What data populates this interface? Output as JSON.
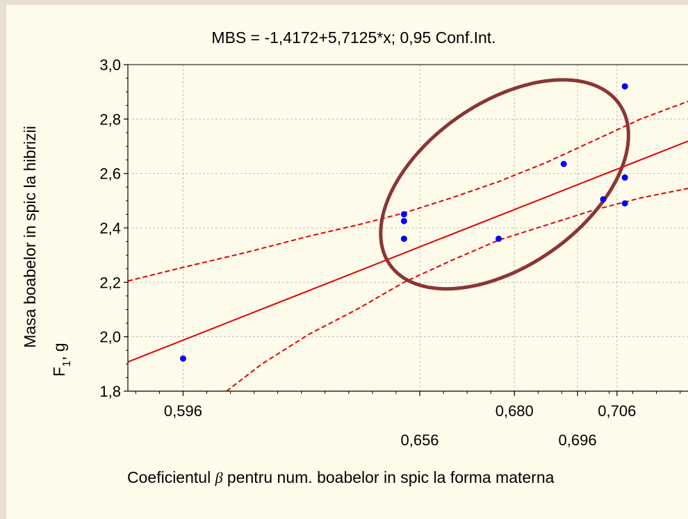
{
  "chart_data": {
    "type": "scatter",
    "title": "MBS = -1,4172+5,7125*x; 0,95 Conf.Int.",
    "ylabel_line1": "Masa boabelor in spic la hibrizii",
    "ylabel_line2_main": "F",
    "ylabel_line2_sub": "1",
    "ylabel_line2_rest": ", g",
    "xlabel_before": "Coeficientul ",
    "xlabel_symbol": "β",
    "xlabel_after": " pentru num. boabelor in spic la forma materna",
    "xlim": [
      0.582,
      0.724
    ],
    "ylim": [
      1.8,
      3.0
    ],
    "grid": true,
    "x_ticks": [
      {
        "value": 0.596,
        "label": "0,596",
        "row": 1
      },
      {
        "value": 0.656,
        "label": "0,656",
        "row": 2
      },
      {
        "value": 0.68,
        "label": "0,680",
        "row": 1
      },
      {
        "value": 0.696,
        "label": "0,696",
        "row": 2
      },
      {
        "value": 0.706,
        "label": "0,706",
        "row": 1
      }
    ],
    "y_ticks": [
      {
        "value": 1.8,
        "label": "1,8"
      },
      {
        "value": 2.0,
        "label": "2,0"
      },
      {
        "value": 2.2,
        "label": "2,2"
      },
      {
        "value": 2.4,
        "label": "2,4"
      },
      {
        "value": 2.6,
        "label": "2,6"
      },
      {
        "value": 2.8,
        "label": "2,8"
      },
      {
        "value": 3.0,
        "label": "3,0"
      }
    ],
    "points": [
      {
        "x": 0.596,
        "y": 1.92
      },
      {
        "x": 0.652,
        "y": 2.45
      },
      {
        "x": 0.652,
        "y": 2.425
      },
      {
        "x": 0.652,
        "y": 2.36
      },
      {
        "x": 0.676,
        "y": 2.36
      },
      {
        "x": 0.6925,
        "y": 2.635
      },
      {
        "x": 0.7025,
        "y": 2.505
      },
      {
        "x": 0.708,
        "y": 2.92
      },
      {
        "x": 0.708,
        "y": 2.585
      },
      {
        "x": 0.708,
        "y": 2.49
      }
    ],
    "regression": {
      "intercept": -1.4172,
      "slope": 5.7125
    },
    "conf_upper": [
      {
        "x": 0.582,
        "y": 2.205
      },
      {
        "x": 0.596,
        "y": 2.255
      },
      {
        "x": 0.612,
        "y": 2.31
      },
      {
        "x": 0.628,
        "y": 2.37
      },
      {
        "x": 0.64,
        "y": 2.41
      },
      {
        "x": 0.652,
        "y": 2.455
      },
      {
        "x": 0.664,
        "y": 2.51
      },
      {
        "x": 0.676,
        "y": 2.57
      },
      {
        "x": 0.688,
        "y": 2.64
      },
      {
        "x": 0.7,
        "y": 2.72
      },
      {
        "x": 0.712,
        "y": 2.8
      },
      {
        "x": 0.724,
        "y": 2.865
      }
    ],
    "conf_lower": [
      {
        "x": 0.607,
        "y": 1.8
      },
      {
        "x": 0.616,
        "y": 1.9
      },
      {
        "x": 0.628,
        "y": 2.01
      },
      {
        "x": 0.64,
        "y": 2.1
      },
      {
        "x": 0.652,
        "y": 2.2
      },
      {
        "x": 0.664,
        "y": 2.28
      },
      {
        "x": 0.676,
        "y": 2.355
      },
      {
        "x": 0.688,
        "y": 2.41
      },
      {
        "x": 0.7,
        "y": 2.465
      },
      {
        "x": 0.712,
        "y": 2.51
      },
      {
        "x": 0.724,
        "y": 2.545
      }
    ],
    "ellipse": {
      "cx": 0.6775,
      "cy": 2.56,
      "rx_x": 0.0355,
      "ry_y": 0.3,
      "angle_deg": -35
    },
    "colors": {
      "background": "#fffbea",
      "outer": "#e8dfd0",
      "points": "#0000ff",
      "regression": "#e00000",
      "ellipse": "#8b3535",
      "grid": "#bdbdbd"
    }
  }
}
